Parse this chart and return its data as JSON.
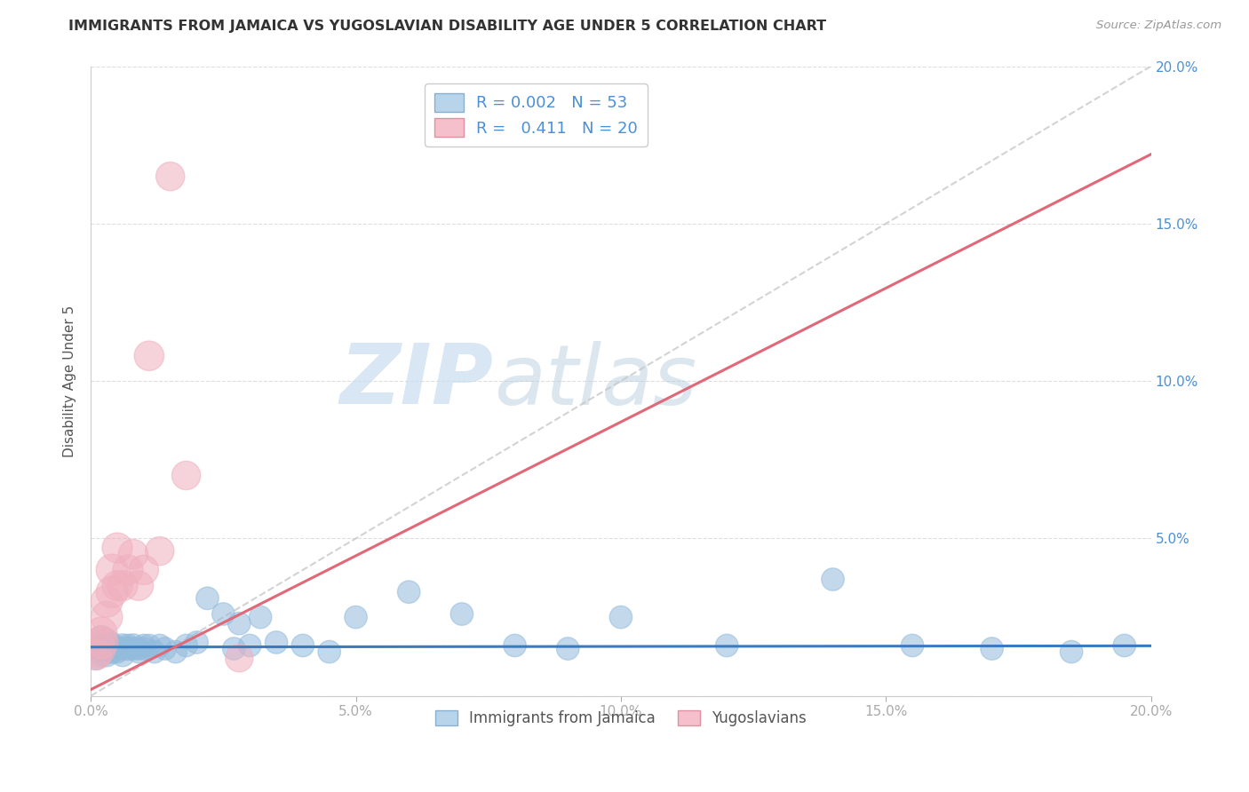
{
  "title": "IMMIGRANTS FROM JAMAICA VS YUGOSLAVIAN DISABILITY AGE UNDER 5 CORRELATION CHART",
  "source": "Source: ZipAtlas.com",
  "ylabel": "Disability Age Under 5",
  "xlim": [
    0.0,
    0.2
  ],
  "ylim": [
    0.0,
    0.2
  ],
  "xticks": [
    0.0,
    0.05,
    0.1,
    0.15,
    0.2
  ],
  "yticks": [
    0.0,
    0.05,
    0.1,
    0.15,
    0.2
  ],
  "xtick_labels": [
    "0.0%",
    "5.0%",
    "10.0%",
    "15.0%",
    "20.0%"
  ],
  "ytick_labels": [
    "",
    "5.0%",
    "10.0%",
    "15.0%",
    "20.0%"
  ],
  "watermark_zip": "ZIP",
  "watermark_atlas": "atlas",
  "blue_color": "#92bbdc",
  "pink_color": "#f0b0be",
  "blue_line_color": "#3a7abf",
  "pink_line_color": "#e06878",
  "dashed_line_color": "#c8c8c8",
  "jamaica_x": [
    0.001,
    0.001,
    0.002,
    0.002,
    0.002,
    0.003,
    0.003,
    0.003,
    0.003,
    0.004,
    0.004,
    0.004,
    0.005,
    0.005,
    0.006,
    0.006,
    0.006,
    0.007,
    0.007,
    0.008,
    0.008,
    0.009,
    0.009,
    0.01,
    0.01,
    0.011,
    0.012,
    0.013,
    0.014,
    0.016,
    0.018,
    0.02,
    0.022,
    0.025,
    0.027,
    0.028,
    0.03,
    0.032,
    0.035,
    0.04,
    0.045,
    0.05,
    0.06,
    0.07,
    0.08,
    0.09,
    0.1,
    0.12,
    0.14,
    0.155,
    0.17,
    0.185,
    0.195
  ],
  "jamaica_y": [
    0.016,
    0.012,
    0.018,
    0.015,
    0.013,
    0.017,
    0.015,
    0.013,
    0.016,
    0.014,
    0.016,
    0.015,
    0.015,
    0.014,
    0.016,
    0.015,
    0.013,
    0.016,
    0.015,
    0.015,
    0.016,
    0.015,
    0.014,
    0.016,
    0.015,
    0.016,
    0.014,
    0.016,
    0.015,
    0.014,
    0.016,
    0.017,
    0.031,
    0.026,
    0.015,
    0.023,
    0.016,
    0.025,
    0.017,
    0.016,
    0.014,
    0.025,
    0.033,
    0.026,
    0.016,
    0.015,
    0.025,
    0.016,
    0.037,
    0.016,
    0.015,
    0.014,
    0.016
  ],
  "yugoslav_x": [
    0.001,
    0.001,
    0.002,
    0.002,
    0.003,
    0.003,
    0.004,
    0.004,
    0.005,
    0.005,
    0.006,
    0.007,
    0.008,
    0.009,
    0.01,
    0.011,
    0.013,
    0.015,
    0.018,
    0.028
  ],
  "yugoslav_y": [
    0.015,
    0.013,
    0.017,
    0.02,
    0.025,
    0.03,
    0.033,
    0.04,
    0.035,
    0.047,
    0.035,
    0.04,
    0.045,
    0.035,
    0.04,
    0.108,
    0.046,
    0.165,
    0.07,
    0.012
  ],
  "jamaica_sizes": [
    35,
    30,
    40,
    35,
    30,
    40,
    35,
    30,
    35,
    30,
    35,
    30,
    30,
    28,
    30,
    28,
    30,
    28,
    30,
    28,
    30,
    28,
    28,
    28,
    28,
    28,
    28,
    28,
    28,
    28,
    28,
    28,
    28,
    28,
    28,
    28,
    28,
    28,
    28,
    28,
    28,
    28,
    28,
    28,
    28,
    28,
    28,
    28,
    28,
    28,
    28,
    28,
    28
  ],
  "yugoslav_sizes": [
    80,
    50,
    60,
    55,
    55,
    55,
    55,
    55,
    50,
    50,
    50,
    50,
    48,
    48,
    48,
    48,
    45,
    45,
    45,
    42
  ]
}
